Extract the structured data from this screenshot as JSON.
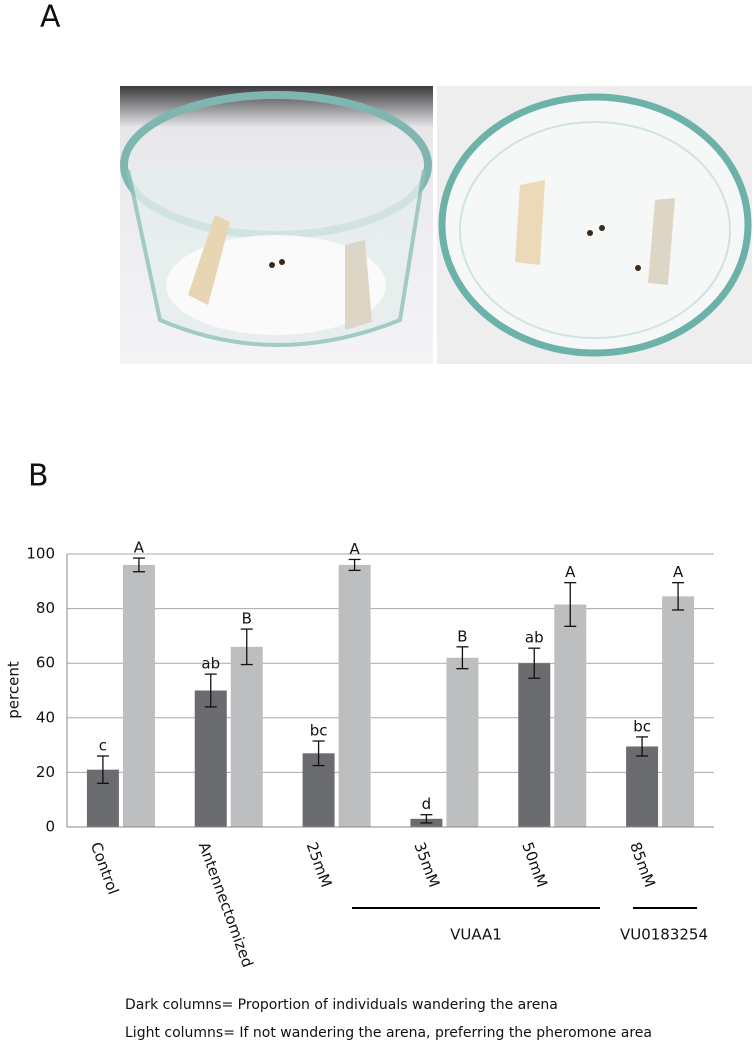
{
  "panel_labels": [
    "A",
    "B"
  ],
  "chart_data": {
    "type": "bar",
    "ylabel": "percent",
    "categories": [
      "Control",
      "Antennectomized",
      "25mM",
      "35mM",
      "50mM",
      "85mM"
    ],
    "series": [
      {
        "color": "#6b6c70",
        "values": [
          21,
          50,
          27,
          3,
          60,
          29.5
        ],
        "errors": [
          5,
          6,
          4.5,
          1.5,
          5.5,
          3.5
        ],
        "letters": [
          "c",
          "ab",
          "bc",
          "d",
          "ab",
          "bc"
        ]
      },
      {
        "color": "#bdbec0",
        "values": [
          96,
          66,
          96,
          62,
          81.5,
          84.5
        ],
        "errors": [
          2.5,
          6.5,
          2,
          4,
          8,
          5
        ],
        "letters": [
          "A",
          "B",
          "A",
          "B",
          "A",
          "A"
        ]
      }
    ],
    "ylim": [
      0,
      100
    ],
    "yticks": [
      0,
      20,
      40,
      60,
      80,
      100
    ],
    "grid": true,
    "group_labels": [
      "VUAA1",
      "VU0183254"
    ],
    "notes": [
      "Dark columns= Proportion of individuals wandering the arena",
      "Light columns= If not wandering the arena, preferring the pheromone area"
    ]
  }
}
